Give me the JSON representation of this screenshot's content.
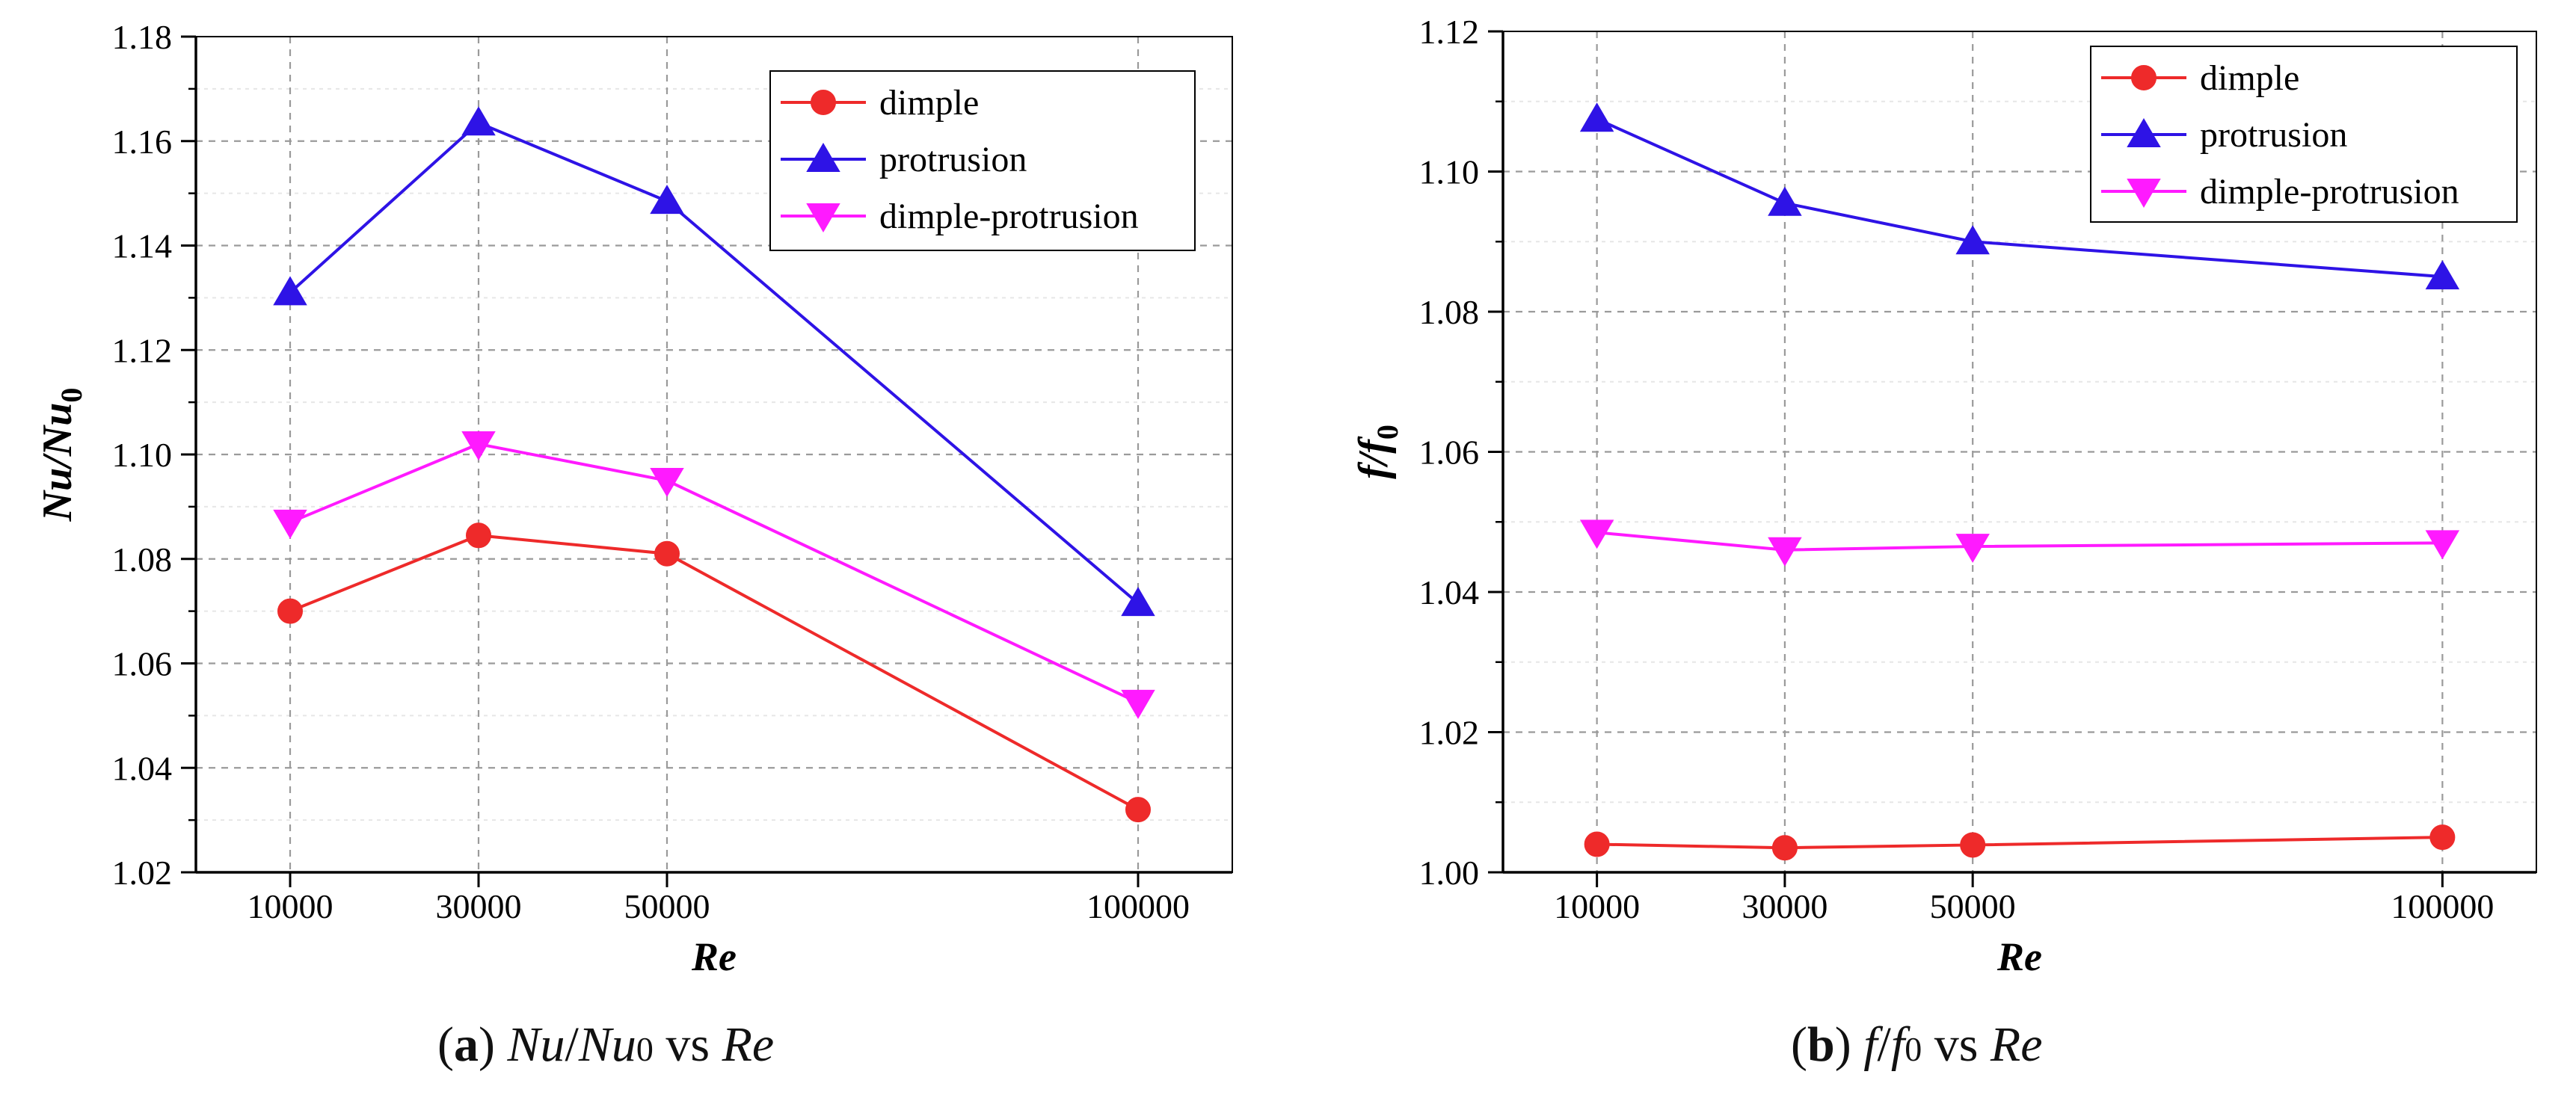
{
  "chart_data": [
    {
      "type": "line",
      "xlabel": "Re",
      "ylabel": "Nu/Nu0",
      "ylabel_main": "Nu/Nu",
      "ylabel_sub": "0",
      "categories": [
        "10000",
        "30000",
        "50000",
        "100000"
      ],
      "x": [
        10000,
        30000,
        50000,
        100000
      ],
      "xlim": [
        0,
        110000
      ],
      "ylim": [
        1.02,
        1.18
      ],
      "yticks": [
        "1.02",
        "1.04",
        "1.06",
        "1.08",
        "1.10",
        "1.12",
        "1.14",
        "1.16",
        "1.18"
      ],
      "grid": true,
      "legend_position": "top-right",
      "series": [
        {
          "name": "dimple",
          "color": "#ee2a2a",
          "marker": "circle",
          "values": [
            1.07,
            1.0845,
            1.081,
            1.032
          ]
        },
        {
          "name": "protrusion",
          "color": "#2e13e6",
          "marker": "triangle-up",
          "values": [
            1.131,
            1.1635,
            1.1485,
            1.0715
          ]
        },
        {
          "name": "dimple-protrusion",
          "color": "#ff1aff",
          "marker": "triangle-down",
          "values": [
            1.087,
            1.102,
            1.095,
            1.0525
          ]
        }
      ]
    },
    {
      "type": "line",
      "xlabel": "Re",
      "ylabel": "f/f0",
      "ylabel_main": "f/f",
      "ylabel_sub": "0",
      "categories": [
        "10000",
        "30000",
        "50000",
        "100000"
      ],
      "x": [
        10000,
        30000,
        50000,
        100000
      ],
      "xlim": [
        0,
        110000
      ],
      "ylim": [
        1.0,
        1.12
      ],
      "yticks": [
        "1.00",
        "1.02",
        "1.04",
        "1.06",
        "1.08",
        "1.10",
        "1.12"
      ],
      "grid": true,
      "legend_position": "top-right",
      "series": [
        {
          "name": "dimple",
          "color": "#ee2a2a",
          "marker": "circle",
          "values": [
            1.004,
            1.0035,
            1.0039,
            1.005
          ]
        },
        {
          "name": "protrusion",
          "color": "#2e13e6",
          "marker": "triangle-up",
          "values": [
            1.1075,
            1.0955,
            1.09,
            1.085
          ]
        },
        {
          "name": "dimple-protrusion",
          "color": "#ff1aff",
          "marker": "triangle-down",
          "values": [
            1.0485,
            1.046,
            1.0465,
            1.047
          ]
        }
      ]
    }
  ],
  "captions": [
    {
      "label": "(a)",
      "label_letter": "a",
      "prefix": "(",
      "suffix": ")",
      "part1": "Nu",
      "sep": "/",
      "part2": "Nu",
      "sub": "0",
      "vs": " vs ",
      "var": "Re"
    },
    {
      "label": "(b)",
      "label_letter": "b",
      "prefix": "(",
      "suffix": ")",
      "part1": "f",
      "sep": "/",
      "part2": "f",
      "sub": "0",
      "vs": " vs ",
      "var": "Re"
    }
  ]
}
